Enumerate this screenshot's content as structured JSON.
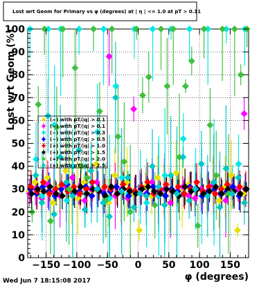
{
  "page": {
    "timestamp": "Wed Jun  7 18:15:08 2017"
  },
  "chart_data": {
    "type": "scatter",
    "title": "Lost wrt Geom for Primary vs φ (degrees) at | η | <= 1.0 at pT > 0.11",
    "xlabel": "φ (degrees)",
    "ylabel": "Lost  wrt Geom (%)",
    "xlim": [
      -180,
      180
    ],
    "ylim": [
      0,
      100
    ],
    "x_ticks": [
      -150,
      -100,
      -50,
      0,
      50,
      100,
      150
    ],
    "x_tick_labels": [
      "−150",
      "−100",
      "−50",
      "0",
      "50",
      "100",
      "150"
    ],
    "y_ticks": [
      0,
      10,
      20,
      30,
      40,
      50,
      60,
      70,
      80,
      90,
      100
    ],
    "grid": true,
    "legend_position": "left, over plot area",
    "marker": "diamond with vertical error bars",
    "series": [
      {
        "name": "(−) with pT/|q| > 0.1",
        "color": "#e8e000",
        "x": [
          -175,
          -165,
          -155,
          -145,
          -135,
          -125,
          -115,
          -105,
          -95,
          -85,
          -75,
          -65,
          -55,
          -45,
          -35,
          -25,
          -15,
          -5,
          5,
          15,
          25,
          35,
          45,
          55,
          65,
          75,
          85,
          95,
          105,
          115,
          125,
          135,
          145,
          155,
          165,
          175
        ],
        "y": [
          29,
          33,
          27,
          35,
          24,
          31,
          38,
          29,
          26,
          33,
          28,
          41,
          30,
          24,
          36,
          29,
          33,
          28,
          12,
          31,
          27,
          35,
          30,
          24,
          37,
          29,
          32,
          26,
          30,
          28,
          33,
          25,
          31,
          36,
          12,
          28
        ]
      },
      {
        "name": "(−) with pT/|q| > 0.1",
        "color": "#ff00ff",
        "x": [
          -175,
          -165,
          -155,
          -145,
          -135,
          -125,
          -115,
          -105,
          -95,
          -85,
          -75,
          -65,
          -55,
          -45,
          -35,
          -25,
          -15,
          -5,
          5,
          15,
          25,
          35,
          45,
          55,
          65,
          75,
          85,
          95,
          105,
          115,
          125,
          135,
          145,
          155,
          165,
          175
        ],
        "y": [
          28,
          30,
          26,
          32,
          29,
          27,
          31,
          35,
          28,
          25,
          30,
          33,
          29,
          88,
          27,
          30,
          26,
          65,
          31,
          28,
          33,
          27,
          30,
          24,
          29,
          31,
          27,
          26,
          30,
          29,
          32,
          28,
          25,
          31,
          30,
          63
        ]
      },
      {
        "name": "(−) with pT/|q| > 0.3",
        "color": "#00e8e8",
        "x": [
          -175,
          -165,
          -155,
          -145,
          -135,
          -125,
          -115,
          -105,
          -95,
          -85,
          -75,
          -65,
          -55,
          -45,
          -35,
          -25,
          -15,
          -5,
          5,
          15,
          25,
          35,
          45,
          55,
          65,
          75,
          85,
          95,
          105,
          115,
          125,
          135,
          145,
          155,
          165,
          175
        ],
        "y": [
          100,
          43,
          27,
          100,
          58,
          100,
          25,
          40,
          100,
          28,
          33,
          55,
          100,
          26,
          75,
          35,
          28,
          100,
          31,
          24,
          100,
          27,
          36,
          100,
          29,
          52,
          100,
          30,
          27,
          100,
          33,
          28,
          100,
          31,
          41,
          100
        ]
      },
      {
        "name": "(−) with pT/|q| > 0.5",
        "color": "#0000ff",
        "x": [
          -175,
          -165,
          -155,
          -145,
          -135,
          -125,
          -115,
          -105,
          -95,
          -85,
          -75,
          -65,
          -55,
          -45,
          -35,
          -25,
          -15,
          -5,
          5,
          15,
          25,
          35,
          45,
          55,
          65,
          75,
          85,
          95,
          105,
          115,
          125,
          135,
          145,
          155,
          165,
          175
        ],
        "y": [
          30,
          28,
          31,
          29,
          27,
          30,
          32,
          28,
          29,
          31,
          27,
          30,
          28,
          29,
          31,
          30,
          27,
          29,
          30,
          28,
          31,
          29,
          27,
          30,
          29,
          28,
          31,
          30,
          27,
          29,
          30,
          28,
          29,
          31,
          27,
          30
        ]
      },
      {
        "name": "(+) with pT/|q| > 1.0",
        "color": "#ff0000",
        "x": [
          -175,
          -165,
          -155,
          -145,
          -135,
          -125,
          -115,
          -105,
          -95,
          -85,
          -75,
          -65,
          -55,
          -45,
          -35,
          -25,
          -15,
          -5,
          5,
          15,
          25,
          35,
          45,
          55,
          65,
          75,
          85,
          95,
          105,
          115,
          125,
          135,
          145,
          155,
          165,
          175
        ],
        "y": [
          31,
          29,
          33,
          28,
          30,
          32,
          29,
          31,
          28,
          30,
          33,
          29,
          31,
          30,
          28,
          32,
          30,
          29,
          31,
          33,
          28,
          30,
          32,
          29,
          31,
          28,
          30,
          33,
          29,
          31,
          28,
          30,
          32,
          29,
          31,
          30
        ]
      },
      {
        "name": "(+) with pT/|q| > 1.5",
        "color": "#000000",
        "x": [
          -175,
          -165,
          -155,
          -145,
          -135,
          -125,
          -115,
          -105,
          -95,
          -85,
          -75,
          -65,
          -55,
          -45,
          -35,
          -25,
          -15,
          -5,
          5,
          15,
          25,
          35,
          45,
          55,
          65,
          75,
          85,
          95,
          105,
          115,
          125,
          135,
          145,
          155,
          165,
          175
        ],
        "y": [
          28,
          30,
          29,
          31,
          28,
          27,
          30,
          29,
          31,
          28,
          30,
          29,
          27,
          31,
          28,
          30,
          29,
          28,
          30,
          31,
          29,
          28,
          30,
          29,
          27,
          31,
          29,
          30,
          28,
          29,
          31,
          28,
          30,
          29,
          28,
          30
        ]
      },
      {
        "name": "(+) with pT/|q| > 2.0",
        "color": "#40c040",
        "x": [
          -175,
          -165,
          -155,
          -145,
          -135,
          -125,
          -115,
          -105,
          -95,
          -85,
          -75,
          -65,
          -55,
          -45,
          -35,
          -25,
          -15,
          -5,
          5,
          15,
          25,
          35,
          45,
          55,
          65,
          75,
          85,
          95,
          105,
          115,
          125,
          135,
          145,
          155,
          165,
          175
        ],
        "y": [
          20,
          67,
          100,
          16,
          57,
          100,
          30,
          83,
          40,
          35,
          100,
          64,
          25,
          100,
          53,
          42,
          20,
          100,
          71,
          79,
          23,
          100,
          75,
          100,
          44,
          75,
          86,
          14,
          100,
          58,
          36,
          100,
          28,
          100,
          80,
          100
        ]
      },
      {
        "name": "(+) with pT/|q| > 2.5",
        "color": "#00c8c8",
        "x": [
          -170,
          -160,
          -150,
          -140,
          -130,
          -120,
          -110,
          -100,
          -90,
          -80,
          -70,
          -60,
          -50,
          -40,
          -30,
          -20,
          -10,
          0,
          10,
          20,
          30,
          40,
          50,
          60,
          70,
          80,
          90,
          100,
          110,
          120,
          130,
          140,
          150,
          160,
          170
        ],
        "y": [
          36,
          24,
          62,
          19,
          44,
          33,
          27,
          47,
          21,
          38,
          30,
          24,
          18,
          70,
          29,
          35,
          22,
          28,
          27,
          40,
          31,
          23,
          36,
          28,
          44,
          25,
          30,
          41,
          27,
          33,
          22,
          39,
          28,
          35,
          24
        ]
      }
    ]
  }
}
